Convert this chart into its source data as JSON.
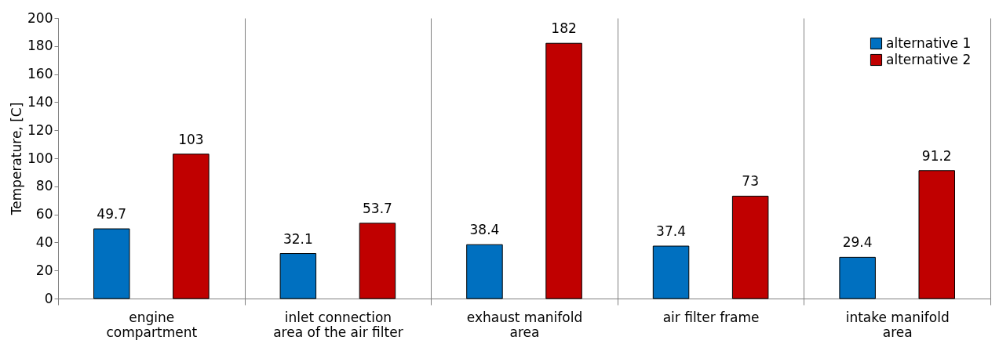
{
  "chart_data": {
    "type": "bar",
    "ylabel": "Temperature, [C]",
    "categories": [
      "engine compartment",
      "inlet connection area of the air filter",
      "exhaust manifold area",
      "air filter frame",
      "intake manifold area"
    ],
    "series": [
      {
        "name": "alternative 1",
        "color": "#0070c0",
        "values": [
          49.7,
          32.1,
          38.4,
          37.4,
          29.4
        ]
      },
      {
        "name": "alternative 2",
        "color": "#c00000",
        "values": [
          103,
          53.7,
          182,
          73,
          91.2
        ]
      }
    ],
    "ylim": [
      0,
      200
    ],
    "yticks": [
      0,
      20,
      40,
      60,
      80,
      100,
      120,
      140,
      160,
      180,
      200
    ],
    "grid": "x",
    "legend": "top right",
    "data_labels": true
  }
}
